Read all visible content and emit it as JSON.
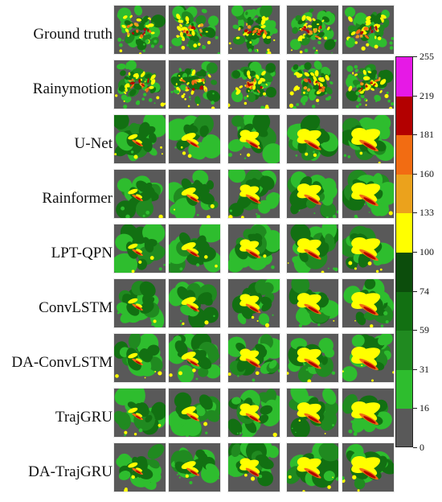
{
  "figure": {
    "rows": [
      {
        "label": "Ground truth",
        "key": "gt"
      },
      {
        "label": "Rainymotion",
        "key": "rm"
      },
      {
        "label": "U-Net",
        "key": "unet"
      },
      {
        "label": "Rainformer",
        "key": "rf"
      },
      {
        "label": "LPT-QPN",
        "key": "lpt"
      },
      {
        "label": "ConvLSTM",
        "key": "cl"
      },
      {
        "label": "DA-ConvLSTM",
        "key": "dacl"
      },
      {
        "label": "TrajGRU",
        "key": "tg"
      },
      {
        "label": "DA-TrajGRU",
        "key": "datg"
      }
    ],
    "frames_per_row": 5,
    "background_color": "#595959"
  },
  "colorbar": {
    "tick_labels": [
      "255",
      "219",
      "181",
      "160",
      "133",
      "100",
      "74",
      "59",
      "31",
      "16",
      "0"
    ],
    "segments": [
      {
        "from": 219,
        "to": 255,
        "color": "#e619e6"
      },
      {
        "from": 181,
        "to": 219,
        "color": "#b30000"
      },
      {
        "from": 160,
        "to": 181,
        "color": "#f26c12"
      },
      {
        "from": 133,
        "to": 160,
        "color": "#eba21c"
      },
      {
        "from": 100,
        "to": 133,
        "color": "#ffff00"
      },
      {
        "from": 74,
        "to": 100,
        "color": "#0c4d0c"
      },
      {
        "from": 59,
        "to": 74,
        "color": "#127012"
      },
      {
        "from": 31,
        "to": 59,
        "color": "#208a20"
      },
      {
        "from": 16,
        "to": 31,
        "color": "#2ebd2e"
      },
      {
        "from": 0,
        "to": 16,
        "color": "#595959"
      }
    ]
  }
}
